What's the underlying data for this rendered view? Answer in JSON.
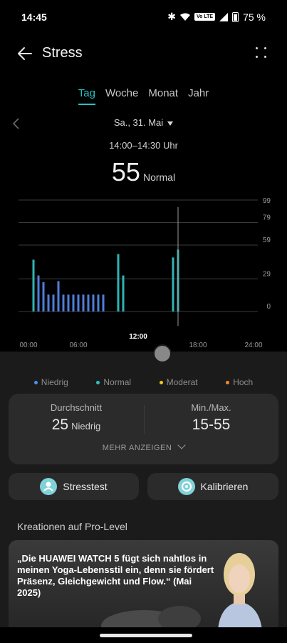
{
  "status": {
    "time": "14:45",
    "volte": "Vo LTE",
    "battery": "75 %"
  },
  "header": {
    "title": "Stress"
  },
  "tabs": [
    {
      "label": "Tag",
      "active": true
    },
    {
      "label": "Woche"
    },
    {
      "label": "Monat"
    },
    {
      "label": "Jahr"
    }
  ],
  "date": "Sa., 31. Mai",
  "time_range": "14:00–14:30 Uhr",
  "current": {
    "value": "55",
    "level": "Normal"
  },
  "chart_data": {
    "type": "bar",
    "y_ticks": [
      "99",
      "79",
      "59",
      "29",
      "0"
    ],
    "x_ticks": [
      "00:00",
      "06:00",
      "12:00",
      "18:00",
      "24:00"
    ],
    "ylim": [
      0,
      99
    ],
    "series": [
      {
        "x_hours": [
          1.5,
          2.0,
          2.5,
          3.0,
          3.5,
          4.0,
          4.5,
          5.0,
          5.5,
          6.0,
          6.5,
          7.0,
          7.5,
          8.0,
          8.5
        ],
        "values": [
          46,
          32,
          26,
          15,
          15,
          27,
          15,
          15,
          15,
          15,
          15,
          15,
          15,
          15,
          15
        ],
        "level": "Niedrig"
      },
      {
        "x_hours": [
          1.5,
          10.0,
          10.5,
          15.5,
          16.0
        ],
        "values": [
          46,
          51,
          32,
          48,
          55
        ],
        "level": "Normal"
      }
    ],
    "selected_hour": 16.0,
    "colors": {
      "niedrig": "#4f7fd8",
      "normal": "#2fb5b5",
      "grid": "#3a3a3a"
    }
  },
  "legend": [
    {
      "label": "Niedrig",
      "color": "#4f8fe8"
    },
    {
      "label": "Normal",
      "color": "#2fc0c0"
    },
    {
      "label": "Moderat",
      "color": "#f5c518"
    },
    {
      "label": "Hoch",
      "color": "#f08a30"
    }
  ],
  "stats": {
    "avg_label": "Durchschnitt",
    "avg_value": "25",
    "avg_level": "Niedrig",
    "minmax_label": "Min./Max.",
    "minmax_value": "15-55",
    "more": "MEHR ANZEIGEN"
  },
  "buttons": {
    "stresstest": "Stresstest",
    "kalibrieren": "Kalibrieren"
  },
  "section_title": "Kreationen auf Pro-Level",
  "promo": {
    "quote": "„Die HUAWEI WATCH 5 fügt sich nahtlos in meinen Yoga-Lebensstil ein, denn sie fördert Präsenz, Gleichgewicht und Flow.“ (Mai 2025)"
  }
}
